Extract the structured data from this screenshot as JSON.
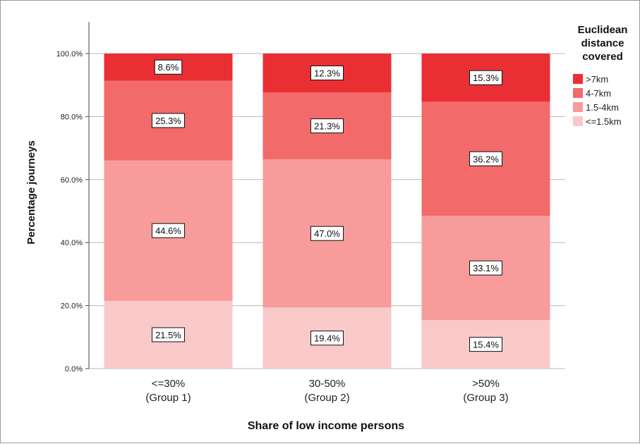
{
  "chart_data": {
    "type": "bar",
    "stacked": true,
    "categories": [
      [
        "<=30%",
        "(Group 1)"
      ],
      [
        "30-50%",
        "(Group 2)"
      ],
      [
        ">50%",
        "(Group 3)"
      ]
    ],
    "series": [
      {
        "name": "<=1.5km",
        "color": "#f9c9c9",
        "values": [
          21.5,
          19.4,
          15.4
        ],
        "labels": [
          "21.5%",
          "19.4%",
          "15.4%"
        ]
      },
      {
        "name": "1.5-4km",
        "color": "#f79b9b",
        "values": [
          44.6,
          47.0,
          33.1
        ],
        "labels": [
          "44.6%",
          "47.0%",
          "33.1%"
        ]
      },
      {
        "name": "4-7km",
        "color": "#f26a6a",
        "values": [
          25.3,
          21.3,
          36.2
        ],
        "labels": [
          "25.3%",
          "21.3%",
          "36.2%"
        ]
      },
      {
        "name": ">7km",
        "color": "#ea2f34",
        "values": [
          8.6,
          12.3,
          15.3
        ],
        "labels": [
          "8.6%",
          "12.3%",
          "15.3%"
        ]
      }
    ],
    "yticks": [
      "0.0%",
      "20.0%",
      "40.0%",
      "60.0%",
      "80.0%",
      "100.0%"
    ],
    "ylim": [
      0,
      110
    ],
    "xlabel": "Share of low income persons",
    "ylabel": "Percentage journeys",
    "legend": {
      "title": [
        "Euclidean",
        "distance",
        "covered"
      ],
      "placement": "right"
    },
    "grid": true
  }
}
